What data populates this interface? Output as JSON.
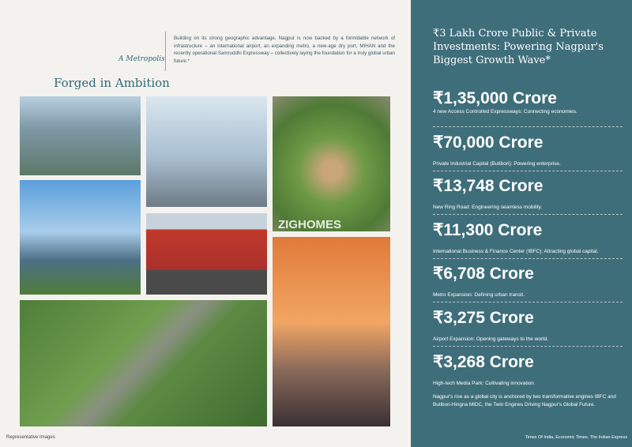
{
  "header": {
    "tagline": "A Metropolis",
    "intro": "Building on its strong geographic advantage, Nagpur is now backed by a formidable network of infrastructure – an international airport, an expanding metro, a new-age dry port, MIHAN and the recently operational Samruddhi Expressway – collectively laying the foundation for a truly global urban future.*",
    "title": "Forged in Ambition"
  },
  "watermark": "ZIGHOMES",
  "left_footer": "Representative Images",
  "panel": {
    "heading": "₹3 Lakh Crore Public & Private Investments: Powering Nagpur's Biggest Growth Wave*",
    "items": [
      {
        "amount": "₹1,35,000 Crore",
        "description": "4 new Access Controlled Expressways: Connecting economies."
      },
      {
        "amount": "₹70,000 Crore",
        "description": "Private Industrial Capital (Butibori): Powering enterprise."
      },
      {
        "amount": "₹13,748 Crore",
        "description": "New Ring Road: Engineering seamless mobility."
      },
      {
        "amount": "₹11,300 Crore",
        "description": "International Business & Finance Center (IBFC): Attracting global capital."
      },
      {
        "amount": "₹6,708 Crore",
        "description": "Metro Expansion: Defining urban transit."
      },
      {
        "amount": "₹3,275 Crore",
        "description": "Airport Expansion: Opening gateways to the world."
      },
      {
        "amount": "₹3,268 Crore",
        "description": "High-tech Media Park: Cultivating innovation"
      }
    ],
    "closing": "Nagpur's rise as a global city is anchored by two transformative engines IBFC and Butibori-Hingna MIDC, the Twin Engines Driving Nagpur's Global Future.",
    "source": "Times Of India, Economic Times, The Indian Express"
  }
}
